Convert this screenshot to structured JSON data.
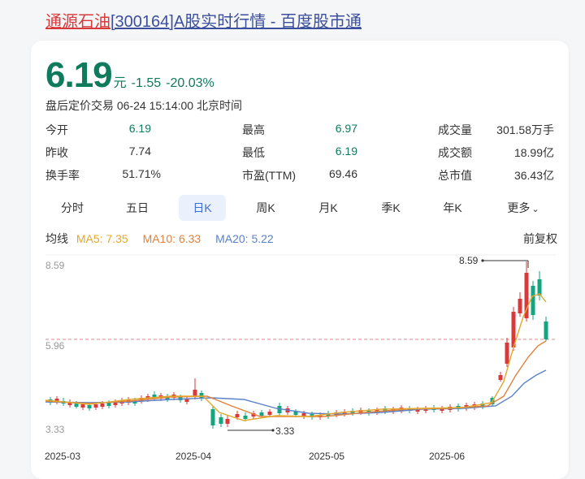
{
  "title": {
    "stock_name": "通源石油",
    "code_text": "[300164]A股实时行情 - 百度股市通"
  },
  "quote": {
    "price": "6.19",
    "unit": "元",
    "change": "-1.55",
    "change_pct": "-20.03%",
    "status": "盘后定价交易 06-24 15:14:00 北京时间"
  },
  "stats": [
    {
      "label": "今开",
      "value": "6.19",
      "green": true
    },
    {
      "label": "最高",
      "value": "6.97",
      "green": true
    },
    {
      "label": "成交量",
      "value": "301.58万手",
      "green": false
    },
    {
      "label": "昨收",
      "value": "7.74",
      "green": false
    },
    {
      "label": "最低",
      "value": "6.19",
      "green": true
    },
    {
      "label": "成交额",
      "value": "18.99亿",
      "green": false
    },
    {
      "label": "换手率",
      "value": "51.71%",
      "green": false
    },
    {
      "label": "市盈(TTM)",
      "value": "69.46",
      "green": false
    },
    {
      "label": "总市值",
      "value": "36.43亿",
      "green": false
    }
  ],
  "tabs": [
    {
      "label": "分时",
      "active": false
    },
    {
      "label": "五日",
      "active": false
    },
    {
      "label": "日K",
      "active": true
    },
    {
      "label": "周K",
      "active": false
    },
    {
      "label": "月K",
      "active": false
    },
    {
      "label": "季K",
      "active": false
    },
    {
      "label": "年K",
      "active": false
    },
    {
      "label": "更多",
      "active": false
    }
  ],
  "ma": {
    "label": "均线",
    "ma5": "MA5: 7.35",
    "ma10": "MA10: 6.33",
    "ma20": "MA20: 5.22",
    "adjust": "前复权"
  },
  "colors": {
    "up": "#d8393b",
    "down": "#13a57f",
    "ma5": "#e3a92e",
    "ma10": "#e0823b",
    "ma20": "#5b82c8",
    "ref_line": "#e08a8a"
  },
  "chart_data": {
    "type": "candlestick",
    "y_ticks": [
      "8.59",
      "5.96",
      "3.33"
    ],
    "x_ticks": [
      "2025-03",
      "2025-04",
      "2025-05",
      "2025-06"
    ],
    "annotations": {
      "max": "8.59",
      "min": "3.33"
    },
    "ylim": [
      3.33,
      8.59
    ],
    "reference_price": 6.19
  }
}
